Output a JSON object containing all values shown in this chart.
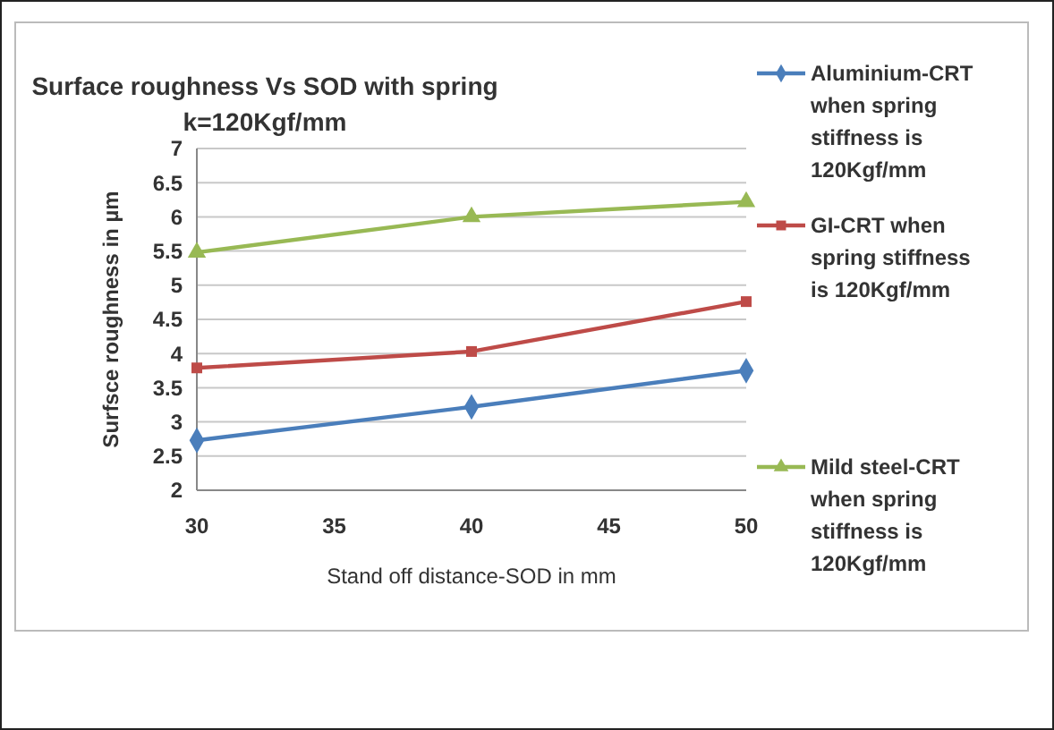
{
  "chart_data": {
    "type": "line",
    "title": "Surface roughness Vs SOD with spring k=120Kgf/mm",
    "xlabel": "Stand off distance-SOD in mm",
    "ylabel": "Surfsce roughness in µm",
    "x": [
      30,
      40,
      50
    ],
    "xlim": [
      30,
      50
    ],
    "xticks": [
      30,
      35,
      40,
      45,
      50
    ],
    "ylim": [
      2,
      7
    ],
    "yticks": [
      2,
      2.5,
      3,
      3.5,
      4,
      4.5,
      5,
      5.5,
      6,
      6.5,
      7
    ],
    "grid": "y",
    "legend": "right",
    "line_style": "solid",
    "series": [
      {
        "name": "Aluminium-CRT when spring stiffness is 120Kgf/mm",
        "color": "#4a7ebb",
        "marker": "diamond",
        "values": [
          2.73,
          3.22,
          3.75
        ]
      },
      {
        "name": "GI-CRT when spring stiffness is 120Kgf/mm",
        "color": "#be4b48",
        "marker": "square",
        "values": [
          3.79,
          4.03,
          4.76
        ]
      },
      {
        "name": "Mild steel-CRT when spring stiffness is 120Kgf/mm",
        "color": "#98b954",
        "marker": "triangle",
        "values": [
          5.48,
          6.0,
          6.22
        ]
      }
    ]
  }
}
